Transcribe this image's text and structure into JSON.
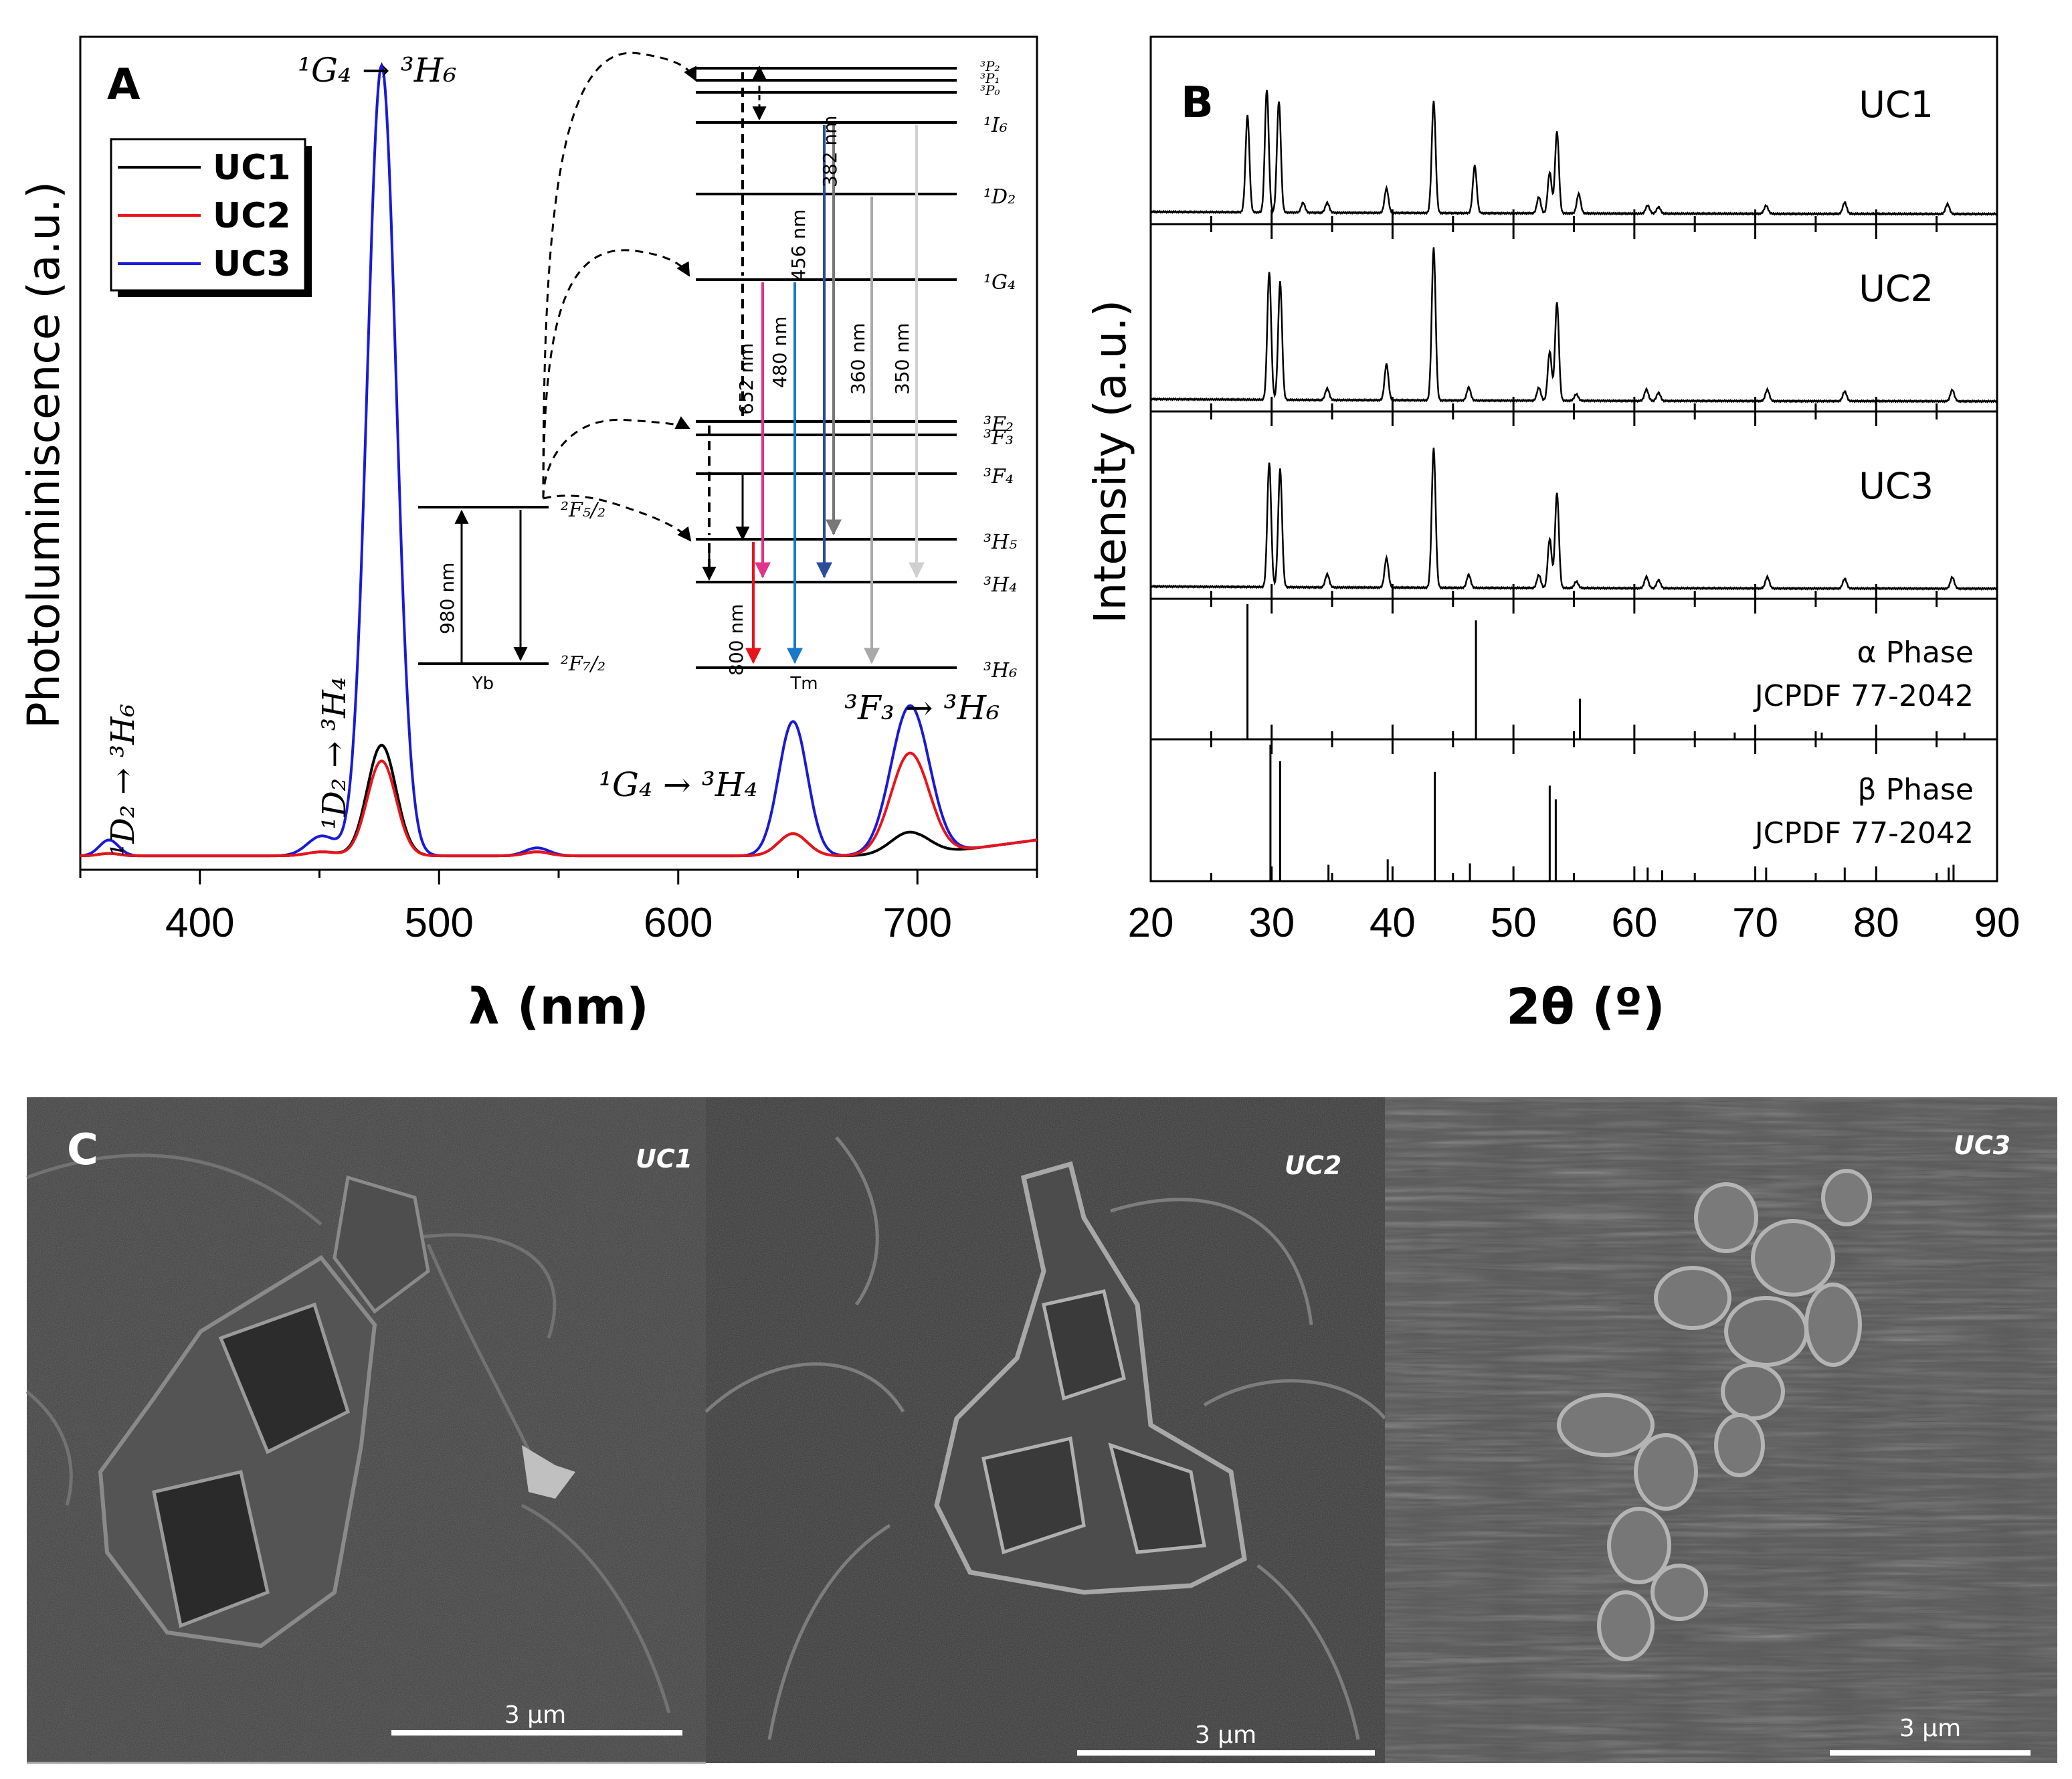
{
  "colors": {
    "UC1": "#000000",
    "UC2": "#e8141c",
    "UC3": "#1a1ad6",
    "sem_dark": "#3b3b3b",
    "sem_light": "#5e5e5e",
    "t652": "#e0348a",
    "t480": "#1a78c8",
    "t456": "#2a4c9a",
    "t382": "#777777",
    "t360": "#a9a9a9",
    "t350": "#d0d0d0",
    "t800": "#e8141c"
  },
  "panelA": {
    "letter": "A",
    "ylabel": "Photoluminiscence (a.u.)",
    "xlabel": "λ (nm)",
    "legend": [
      "UC1",
      "UC2",
      "UC3"
    ],
    "ticks": [
      "400",
      "500",
      "600",
      "700"
    ],
    "peak_labels": {
      "p1": "¹D₂ → ³H₆",
      "p2": "¹D₂ → ³H₄",
      "p3": "¹G₄ → ³H₆",
      "p4": "¹G₄ → ³H₄",
      "p5": "³F₃ → ³H₆"
    },
    "energy_diagram": {
      "yb_label": "Yb",
      "tm_label": "Tm",
      "yb_levels": [
        "²F₅/₂",
        "²F₇/₂"
      ],
      "tm_levels": [
        "³P₂",
        "³P₁",
        "³P₀",
        "¹I₆",
        "¹D₂",
        "¹G₄",
        "³F₂",
        "³F₃",
        "³F₄",
        "³H₅",
        "³H₄",
        "³H₆"
      ],
      "transitions": [
        "980 nm",
        "800 nm",
        "652 nm",
        "480 nm",
        "456 nm",
        "382 nm",
        "360 nm",
        "350 nm"
      ]
    }
  },
  "panelB": {
    "letter": "B",
    "ylabel": "Intensity (a.u.)",
    "xlabel": "2θ (º)",
    "ticks": [
      "20",
      "30",
      "40",
      "50",
      "60",
      "70",
      "80",
      "90"
    ],
    "rows": [
      "UC1",
      "UC2",
      "UC3"
    ],
    "ref_alpha": [
      "α Phase",
      "JCPDF 77-2042"
    ],
    "ref_beta": [
      "β Phase",
      "JCPDF 77-2042"
    ]
  },
  "panelC": {
    "letter": "C",
    "images": [
      {
        "label": "UC1",
        "scale": "3 µm"
      },
      {
        "label": "UC2",
        "scale": "3 µm"
      },
      {
        "label": "UC3",
        "scale": "3 µm"
      }
    ]
  },
  "chart_data": [
    {
      "type": "line",
      "title": "",
      "xlabel": "λ (nm)",
      "ylabel": "Photoluminiscence (a.u.)",
      "xlim": [
        350,
        750
      ],
      "ylim": [
        0,
        1.02
      ],
      "grid": false,
      "legend": "top-left",
      "peak_positions_nm": [
        362,
        451,
        476,
        541,
        648,
        697
      ],
      "series": [
        {
          "name": "UC1",
          "peak_heights": [
            0.003,
            0.005,
            0.14,
            0.005,
            0.028,
            0.03
          ]
        },
        {
          "name": "UC2",
          "peak_heights": [
            0.003,
            0.005,
            0.12,
            0.005,
            0.028,
            0.13
          ]
        },
        {
          "name": "UC3",
          "peak_heights": [
            0.02,
            0.025,
            1.0,
            0.01,
            0.17,
            0.19
          ]
        }
      ]
    },
    {
      "type": "line",
      "title": "",
      "xlabel": "2θ (º)",
      "ylabel": "Intensity (a.u.)",
      "xlim": [
        20,
        90
      ],
      "grid": false,
      "series": [
        {
          "name": "UC1",
          "x": [
            28.0,
            29.6,
            30.6,
            32.6,
            34.6,
            39.5,
            43.4,
            46.8,
            52.1,
            53.0,
            53.6,
            55.4,
            61.1,
            62.0,
            70.9,
            77.4,
            85.9
          ],
          "y": [
            0.59,
            0.75,
            0.68,
            0.06,
            0.06,
            0.15,
            0.68,
            0.29,
            0.1,
            0.25,
            0.5,
            0.12,
            0.05,
            0.04,
            0.05,
            0.07,
            0.06
          ]
        },
        {
          "name": "UC2",
          "x": [
            29.8,
            30.7,
            34.6,
            39.5,
            43.4,
            46.3,
            52.1,
            53.0,
            53.6,
            55.2,
            61.0,
            62.0,
            71.0,
            77.4,
            86.3
          ],
          "y": [
            0.78,
            0.72,
            0.07,
            0.22,
            0.93,
            0.08,
            0.08,
            0.3,
            0.6,
            0.04,
            0.07,
            0.05,
            0.07,
            0.06,
            0.07
          ]
        },
        {
          "name": "UC3",
          "x": [
            29.8,
            30.7,
            34.6,
            39.5,
            43.4,
            46.3,
            52.1,
            53.0,
            53.6,
            55.2,
            61.0,
            62.0,
            71.0,
            77.4,
            86.3
          ],
          "y": [
            0.76,
            0.72,
            0.08,
            0.18,
            0.85,
            0.08,
            0.08,
            0.3,
            0.58,
            0.04,
            0.07,
            0.05,
            0.07,
            0.06,
            0.07
          ]
        },
        {
          "name": "α Phase JCPDF 77-2042",
          "x": [
            28.0,
            46.9,
            55.5,
            68.3,
            75.5,
            87.3
          ],
          "y": [
            1.0,
            0.88,
            0.3,
            0.05,
            0.05,
            0.05
          ]
        },
        {
          "name": "β Phase JCPDF 77-2042",
          "x": [
            29.9,
            30.7,
            34.7,
            39.6,
            43.5,
            46.4,
            53.0,
            53.5,
            61.1,
            62.3,
            70.9,
            77.4,
            86.0,
            86.4
          ],
          "y": [
            1.0,
            0.88,
            0.12,
            0.16,
            0.8,
            0.13,
            0.7,
            0.6,
            0.1,
            0.08,
            0.1,
            0.1,
            0.1,
            0.12
          ]
        }
      ]
    }
  ]
}
